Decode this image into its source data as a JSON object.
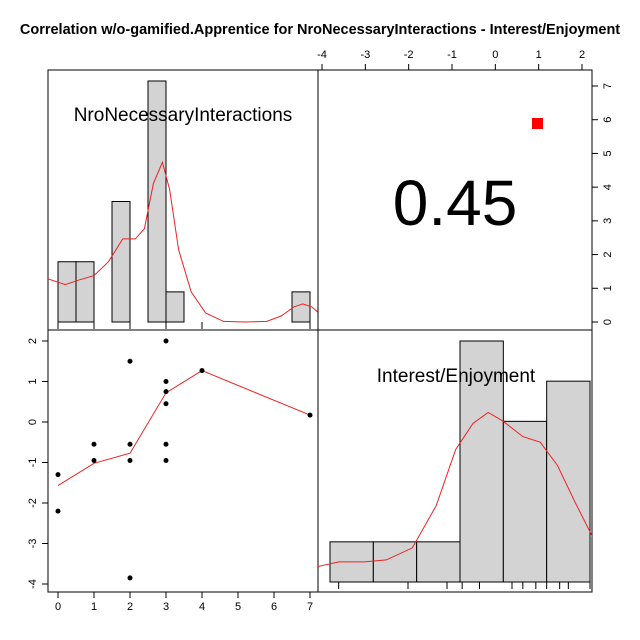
{
  "title": "Correlation w/o-gamified.Apprentice for NroNecessaryInteractions - Interest/Enjoyment",
  "chart_data": {
    "type": "scatter-matrix",
    "variables": [
      "NroNecessaryInteractions",
      "Interest/Enjoyment"
    ],
    "correlation": {
      "value": 0.45,
      "label": "0.45",
      "significance_marker_color": "#ff0000"
    },
    "axes": {
      "top": {
        "var": "Interest/Enjoyment",
        "range": [
          -4,
          2
        ],
        "ticks": [
          -4,
          -3,
          -2,
          -1,
          0,
          1,
          2
        ],
        "tick_labels": [
          "-4",
          "-3",
          "-2",
          "-1",
          "0",
          "1",
          "2"
        ]
      },
      "right": {
        "note": "counts of Interest/Enjoyment histogram",
        "range": [
          0,
          7
        ],
        "ticks": [
          0,
          1,
          2,
          3,
          4,
          5,
          6,
          7
        ],
        "tick_labels": [
          "0",
          "1",
          "2",
          "3",
          "4",
          "5",
          "6",
          "7"
        ]
      },
      "left": {
        "var": "Interest/Enjoyment",
        "range": [
          -4,
          2
        ],
        "ticks": [
          -4,
          -3,
          -2,
          -1,
          0,
          1,
          2
        ],
        "tick_labels": [
          "-4",
          "-3",
          "-2",
          "-1",
          "0",
          "1",
          "2"
        ]
      },
      "bottom": {
        "var": "NroNecessaryInteractions",
        "range": [
          0,
          7
        ],
        "ticks": [
          0,
          1,
          2,
          3,
          4,
          5,
          6,
          7
        ],
        "tick_labels": [
          "0",
          "1",
          "2",
          "3",
          "4",
          "5",
          "6",
          "7"
        ]
      }
    },
    "hist_x": {
      "name": "NroNecessaryInteractions",
      "bins": [
        {
          "from": 0,
          "to": 0.5,
          "count": 1
        },
        {
          "from": 0.5,
          "to": 1,
          "count": 1
        },
        {
          "from": 1,
          "to": 1.5,
          "count": 0
        },
        {
          "from": 1.5,
          "to": 2,
          "count": 2
        },
        {
          "from": 2,
          "to": 2.5,
          "count": 0
        },
        {
          "from": 2.5,
          "to": 3,
          "count": 4
        },
        {
          "from": 3,
          "to": 3.5,
          "count": 0.5
        },
        {
          "from": 3.5,
          "to": 4,
          "count": 0
        },
        {
          "from": 4,
          "to": 4.5,
          "count": 0
        },
        {
          "from": 4.5,
          "to": 5,
          "count": 0
        },
        {
          "from": 5,
          "to": 5.5,
          "count": 0
        },
        {
          "from": 5.5,
          "to": 6,
          "count": 0
        },
        {
          "from": 6,
          "to": 6.5,
          "count": 0
        },
        {
          "from": 6.5,
          "to": 7,
          "count": 0.5
        }
      ],
      "ymax": 4.0,
      "density": [
        [
          -1.0,
          0.6
        ],
        [
          -0.3,
          0.72
        ],
        [
          0.2,
          0.62
        ],
        [
          0.6,
          0.7
        ],
        [
          1.0,
          0.77
        ],
        [
          1.4,
          1.0
        ],
        [
          1.8,
          1.38
        ],
        [
          2.15,
          1.38
        ],
        [
          2.4,
          1.55
        ],
        [
          2.65,
          2.3
        ],
        [
          2.9,
          2.65
        ],
        [
          3.1,
          2.2
        ],
        [
          3.35,
          1.2
        ],
        [
          3.7,
          0.5
        ],
        [
          4.1,
          0.15
        ],
        [
          4.6,
          0.01
        ],
        [
          5.2,
          0
        ],
        [
          5.8,
          0.01
        ],
        [
          6.2,
          0.1
        ],
        [
          6.55,
          0.25
        ],
        [
          6.8,
          0.3
        ],
        [
          7.05,
          0.25
        ],
        [
          7.3,
          0.12
        ]
      ],
      "rug": [
        0,
        1,
        2,
        3,
        4,
        7
      ]
    },
    "hist_y": {
      "name": "Interest/Enjoyment",
      "bins": [
        {
          "from": -4,
          "to": -3,
          "count": 1
        },
        {
          "from": -3,
          "to": -2,
          "count": 1
        },
        {
          "from": -2,
          "to": -1,
          "count": 1
        },
        {
          "from": -1,
          "to": 0,
          "count": 6
        },
        {
          "from": 0,
          "to": 1,
          "count": 4
        },
        {
          "from": 1,
          "to": 2,
          "count": 5
        }
      ],
      "ymax": 6.0,
      "density": [
        [
          -4.3,
          0.38
        ],
        [
          -3.8,
          0.5
        ],
        [
          -3.2,
          0.5
        ],
        [
          -2.7,
          0.55
        ],
        [
          -2.1,
          0.85
        ],
        [
          -1.55,
          1.9
        ],
        [
          -1.1,
          3.3
        ],
        [
          -0.7,
          3.95
        ],
        [
          -0.35,
          4.22
        ],
        [
          0.0,
          4.0
        ],
        [
          0.45,
          3.62
        ],
        [
          0.85,
          3.48
        ],
        [
          1.25,
          2.9
        ],
        [
          1.65,
          2.0
        ],
        [
          2.0,
          1.25
        ],
        [
          2.25,
          0.7
        ]
      ],
      "rug": [
        -3.8,
        -2.2,
        -1.3,
        -0.95,
        -0.55,
        0.2,
        0.45,
        0.75,
        1.0,
        1.3,
        1.5,
        2.0
      ]
    },
    "scatter": {
      "points": [
        {
          "x": 0,
          "y": -1.3
        },
        {
          "x": 0,
          "y": -2.2
        },
        {
          "x": 1,
          "y": -0.55
        },
        {
          "x": 1,
          "y": -0.95
        },
        {
          "x": 2,
          "y": 1.5
        },
        {
          "x": 2,
          "y": -0.55
        },
        {
          "x": 2,
          "y": -0.95
        },
        {
          "x": 2,
          "y": -3.85
        },
        {
          "x": 3,
          "y": 2.0
        },
        {
          "x": 3,
          "y": 1.0
        },
        {
          "x": 3,
          "y": 0.75
        },
        {
          "x": 3,
          "y": 0.45
        },
        {
          "x": 3,
          "y": -0.55
        },
        {
          "x": 3,
          "y": -0.95
        },
        {
          "x": 4,
          "y": 1.27
        },
        {
          "x": 7,
          "y": 0.17
        }
      ],
      "smooth": [
        [
          0,
          -1.57
        ],
        [
          1,
          -1.02
        ],
        [
          2,
          -0.77
        ],
        [
          3,
          0.72
        ],
        [
          4,
          1.27
        ],
        [
          7,
          0.17
        ]
      ]
    },
    "colors": {
      "bar_fill": "#d3d3d3",
      "curve": "#ee2222",
      "marker": "#ff0000"
    }
  }
}
